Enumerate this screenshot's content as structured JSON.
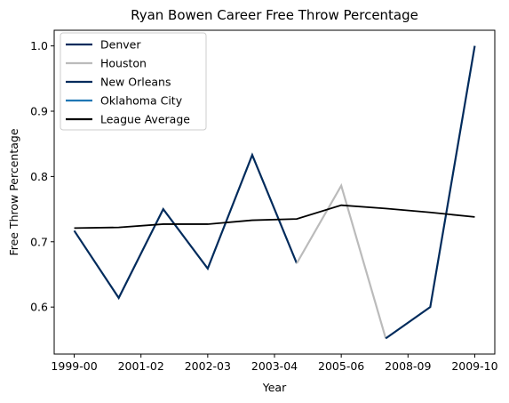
{
  "chart_data": {
    "type": "line",
    "title": "Ryan Bowen Career Free Throw Percentage",
    "xlabel": "Year",
    "ylabel": "Free Throw Percentage",
    "x_ticks": [
      "1999-00",
      "2001-02",
      "2002-03",
      "2003-04",
      "2005-06",
      "2008-09",
      "2009-10"
    ],
    "y_ticks": [
      "0.6",
      "0.7",
      "0.8",
      "0.9",
      "1.0"
    ],
    "ylim": [
      0.528,
      1.024
    ],
    "xlim": [
      -0.45,
      9.45
    ],
    "grid": false,
    "legend_placement": "upper left",
    "series": [
      {
        "name": "Denver",
        "color": "#002b5c",
        "points": [
          {
            "x": 0,
            "y": 0.717
          },
          {
            "x": 1,
            "y": 0.614
          },
          {
            "x": 2,
            "y": 0.75
          },
          {
            "x": 3,
            "y": 0.659
          },
          {
            "x": 4,
            "y": 0.833
          },
          {
            "x": 5,
            "y": 0.667
          }
        ]
      },
      {
        "name": "Houston",
        "color": "#bbbbbb",
        "points": [
          {
            "x": 5,
            "y": 0.667
          },
          {
            "x": 6,
            "y": 0.786
          },
          {
            "x": 7,
            "y": 0.552
          }
        ]
      },
      {
        "name": "New Orleans",
        "color": "#002b5c",
        "points": [
          {
            "x": 7,
            "y": 0.552
          },
          {
            "x": 8,
            "y": 0.6
          },
          {
            "x": 9,
            "y": 1.0
          }
        ]
      },
      {
        "name": "Oklahoma City",
        "color": "#1f77b4",
        "points": []
      },
      {
        "name": "League Average",
        "color": "#000000",
        "points": [
          {
            "x": 0,
            "y": 0.721
          },
          {
            "x": 1,
            "y": 0.722
          },
          {
            "x": 2,
            "y": 0.727
          },
          {
            "x": 3,
            "y": 0.727
          },
          {
            "x": 4,
            "y": 0.733
          },
          {
            "x": 5,
            "y": 0.735
          },
          {
            "x": 6,
            "y": 0.756
          },
          {
            "x": 7,
            "y": 0.751
          },
          {
            "x": 8,
            "y": 0.745
          },
          {
            "x": 9,
            "y": 0.738
          }
        ]
      }
    ]
  }
}
